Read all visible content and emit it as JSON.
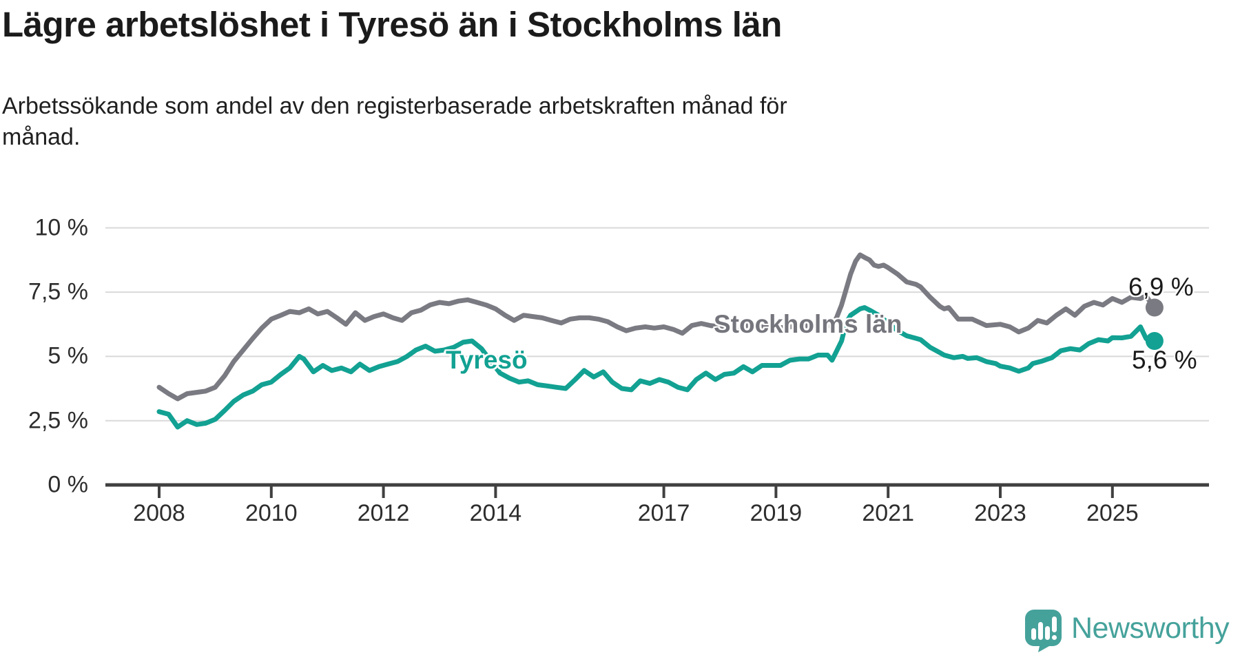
{
  "title": "Lägre arbetslöshet i Tyresö än i Stockholms län",
  "subtitle_lines": [
    "Arbetssökande som andel av den registerbaserade arbetskraften månad för",
    "månad."
  ],
  "branding": {
    "name": "Newsworthy",
    "icon": "speech-bubble-bar-chart-exclamation"
  },
  "colors": {
    "stockholm": "#7A7A82",
    "tyreso": "#12A192",
    "grid": "#D9D9D9",
    "axis": "#404040",
    "tick_text": "#2D2D2D",
    "value_text": "#1A1A1A",
    "logo": "#45A29B"
  },
  "chart_data": {
    "type": "line",
    "title": "Lägre arbetslöshet i Tyresö än i Stockholms län",
    "subtitle": "Arbetssökande som andel av den registerbaserade arbetskraften månad för månad.",
    "xlabel": "",
    "ylabel": "",
    "grid": "horizontal",
    "legend_position": "inline-labels",
    "xlim": [
      2007.05,
      2026.75
    ],
    "ylim": [
      0,
      10
    ],
    "x_ticks": [
      2008,
      2010,
      2012,
      2014,
      2017,
      2019,
      2021,
      2023,
      2025
    ],
    "y_ticks": [
      {
        "value": 10,
        "label": "10 %"
      },
      {
        "value": 7.5,
        "label": "7,5 %"
      },
      {
        "value": 5,
        "label": "5 %"
      },
      {
        "value": 2.5,
        "label": "2,5 %"
      },
      {
        "value": 0,
        "label": "0 %"
      }
    ],
    "series": [
      {
        "name": "Stockholms län",
        "color": "#7A7A82",
        "end_label": "6,9 %",
        "end_value": 6.9,
        "points": [
          [
            2008.0,
            3.8
          ],
          [
            2008.17,
            3.55
          ],
          [
            2008.33,
            3.35
          ],
          [
            2008.5,
            3.55
          ],
          [
            2008.67,
            3.6
          ],
          [
            2008.83,
            3.65
          ],
          [
            2009.0,
            3.8
          ],
          [
            2009.17,
            4.25
          ],
          [
            2009.33,
            4.8
          ],
          [
            2009.5,
            5.25
          ],
          [
            2009.67,
            5.7
          ],
          [
            2009.83,
            6.1
          ],
          [
            2010.0,
            6.45
          ],
          [
            2010.17,
            6.6
          ],
          [
            2010.33,
            6.75
          ],
          [
            2010.5,
            6.7
          ],
          [
            2010.67,
            6.85
          ],
          [
            2010.83,
            6.65
          ],
          [
            2011.0,
            6.75
          ],
          [
            2011.17,
            6.5
          ],
          [
            2011.33,
            6.25
          ],
          [
            2011.5,
            6.7
          ],
          [
            2011.67,
            6.4
          ],
          [
            2011.83,
            6.55
          ],
          [
            2012.0,
            6.65
          ],
          [
            2012.17,
            6.5
          ],
          [
            2012.33,
            6.4
          ],
          [
            2012.5,
            6.7
          ],
          [
            2012.67,
            6.8
          ],
          [
            2012.83,
            7.0
          ],
          [
            2013.0,
            7.1
          ],
          [
            2013.17,
            7.05
          ],
          [
            2013.33,
            7.15
          ],
          [
            2013.5,
            7.2
          ],
          [
            2013.67,
            7.1
          ],
          [
            2013.83,
            7.0
          ],
          [
            2014.0,
            6.85
          ],
          [
            2014.17,
            6.6
          ],
          [
            2014.33,
            6.4
          ],
          [
            2014.5,
            6.6
          ],
          [
            2014.67,
            6.55
          ],
          [
            2014.83,
            6.5
          ],
          [
            2015.0,
            6.4
          ],
          [
            2015.17,
            6.3
          ],
          [
            2015.33,
            6.45
          ],
          [
            2015.5,
            6.5
          ],
          [
            2015.67,
            6.5
          ],
          [
            2015.83,
            6.45
          ],
          [
            2016.0,
            6.35
          ],
          [
            2016.17,
            6.15
          ],
          [
            2016.33,
            6.0
          ],
          [
            2016.5,
            6.1
          ],
          [
            2016.67,
            6.15
          ],
          [
            2016.83,
            6.1
          ],
          [
            2017.0,
            6.15
          ],
          [
            2017.17,
            6.05
          ],
          [
            2017.33,
            5.9
          ],
          [
            2017.5,
            6.2
          ],
          [
            2017.67,
            6.28
          ],
          [
            2017.83,
            6.2
          ],
          [
            2018.0,
            6.15
          ],
          [
            2018.25,
            6.1
          ],
          [
            2018.5,
            6.2
          ],
          [
            2018.75,
            6.15
          ],
          [
            2019.0,
            6.1
          ],
          [
            2019.25,
            6.15
          ],
          [
            2019.5,
            6.2
          ],
          [
            2019.75,
            6.15
          ],
          [
            2020.0,
            6.2
          ],
          [
            2020.08,
            6.5
          ],
          [
            2020.17,
            7.0
          ],
          [
            2020.25,
            7.6
          ],
          [
            2020.33,
            8.2
          ],
          [
            2020.42,
            8.7
          ],
          [
            2020.5,
            8.95
          ],
          [
            2020.58,
            8.85
          ],
          [
            2020.67,
            8.75
          ],
          [
            2020.75,
            8.55
          ],
          [
            2020.83,
            8.5
          ],
          [
            2020.92,
            8.55
          ],
          [
            2021.0,
            8.45
          ],
          [
            2021.17,
            8.2
          ],
          [
            2021.33,
            7.9
          ],
          [
            2021.5,
            7.8
          ],
          [
            2021.58,
            7.7
          ],
          [
            2021.75,
            7.3
          ],
          [
            2021.92,
            6.95
          ],
          [
            2022.0,
            6.85
          ],
          [
            2022.08,
            6.9
          ],
          [
            2022.25,
            6.45
          ],
          [
            2022.5,
            6.45
          ],
          [
            2022.75,
            6.2
          ],
          [
            2023.0,
            6.25
          ],
          [
            2023.17,
            6.15
          ],
          [
            2023.33,
            5.95
          ],
          [
            2023.5,
            6.1
          ],
          [
            2023.67,
            6.4
          ],
          [
            2023.83,
            6.3
          ],
          [
            2024.0,
            6.6
          ],
          [
            2024.17,
            6.85
          ],
          [
            2024.33,
            6.6
          ],
          [
            2024.5,
            6.95
          ],
          [
            2024.67,
            7.1
          ],
          [
            2024.83,
            7.0
          ],
          [
            2025.0,
            7.25
          ],
          [
            2025.17,
            7.1
          ],
          [
            2025.33,
            7.3
          ],
          [
            2025.5,
            7.25
          ],
          [
            2025.6,
            7.35
          ],
          [
            2025.68,
            7.1
          ],
          [
            2025.75,
            6.9
          ]
        ]
      },
      {
        "name": "Tyresö",
        "color": "#12A192",
        "end_label": "5,6 %",
        "end_value": 5.6,
        "points": [
          [
            2008.0,
            2.85
          ],
          [
            2008.17,
            2.75
          ],
          [
            2008.33,
            2.25
          ],
          [
            2008.5,
            2.5
          ],
          [
            2008.67,
            2.35
          ],
          [
            2008.83,
            2.4
          ],
          [
            2009.0,
            2.55
          ],
          [
            2009.17,
            2.9
          ],
          [
            2009.33,
            3.25
          ],
          [
            2009.5,
            3.5
          ],
          [
            2009.67,
            3.65
          ],
          [
            2009.83,
            3.9
          ],
          [
            2010.0,
            4.0
          ],
          [
            2010.17,
            4.3
          ],
          [
            2010.33,
            4.55
          ],
          [
            2010.5,
            5.0
          ],
          [
            2010.58,
            4.9
          ],
          [
            2010.75,
            4.4
          ],
          [
            2010.92,
            4.65
          ],
          [
            2011.08,
            4.45
          ],
          [
            2011.25,
            4.55
          ],
          [
            2011.42,
            4.4
          ],
          [
            2011.58,
            4.7
          ],
          [
            2011.75,
            4.45
          ],
          [
            2011.92,
            4.6
          ],
          [
            2012.08,
            4.7
          ],
          [
            2012.25,
            4.8
          ],
          [
            2012.42,
            5.0
          ],
          [
            2012.58,
            5.25
          ],
          [
            2012.75,
            5.4
          ],
          [
            2012.92,
            5.2
          ],
          [
            2013.08,
            5.25
          ],
          [
            2013.25,
            5.35
          ],
          [
            2013.42,
            5.55
          ],
          [
            2013.58,
            5.6
          ],
          [
            2013.75,
            5.3
          ],
          [
            2013.92,
            4.8
          ],
          [
            2014.08,
            4.35
          ],
          [
            2014.25,
            4.15
          ],
          [
            2014.42,
            4.0
          ],
          [
            2014.58,
            4.05
          ],
          [
            2014.75,
            3.9
          ],
          [
            2014.92,
            3.85
          ],
          [
            2015.08,
            3.8
          ],
          [
            2015.25,
            3.75
          ],
          [
            2015.42,
            4.1
          ],
          [
            2015.58,
            4.45
          ],
          [
            2015.75,
            4.2
          ],
          [
            2015.92,
            4.4
          ],
          [
            2016.08,
            4.0
          ],
          [
            2016.25,
            3.75
          ],
          [
            2016.42,
            3.7
          ],
          [
            2016.58,
            4.05
          ],
          [
            2016.75,
            3.95
          ],
          [
            2016.92,
            4.1
          ],
          [
            2017.08,
            4.0
          ],
          [
            2017.25,
            3.8
          ],
          [
            2017.42,
            3.7
          ],
          [
            2017.58,
            4.1
          ],
          [
            2017.75,
            4.35
          ],
          [
            2017.92,
            4.1
          ],
          [
            2018.08,
            4.3
          ],
          [
            2018.25,
            4.35
          ],
          [
            2018.42,
            4.6
          ],
          [
            2018.58,
            4.4
          ],
          [
            2018.75,
            4.65
          ],
          [
            2018.92,
            4.65
          ],
          [
            2019.08,
            4.65
          ],
          [
            2019.25,
            4.85
          ],
          [
            2019.42,
            4.9
          ],
          [
            2019.58,
            4.9
          ],
          [
            2019.75,
            5.05
          ],
          [
            2019.92,
            5.05
          ],
          [
            2020.0,
            4.85
          ],
          [
            2020.08,
            5.2
          ],
          [
            2020.17,
            5.6
          ],
          [
            2020.25,
            6.3
          ],
          [
            2020.33,
            6.6
          ],
          [
            2020.5,
            6.85
          ],
          [
            2020.58,
            6.9
          ],
          [
            2020.67,
            6.8
          ],
          [
            2020.83,
            6.6
          ],
          [
            2021.0,
            6.3
          ],
          [
            2021.17,
            6.0
          ],
          [
            2021.33,
            5.8
          ],
          [
            2021.5,
            5.7
          ],
          [
            2021.58,
            5.65
          ],
          [
            2021.75,
            5.35
          ],
          [
            2021.92,
            5.15
          ],
          [
            2022.0,
            5.05
          ],
          [
            2022.17,
            4.95
          ],
          [
            2022.33,
            5.0
          ],
          [
            2022.42,
            4.92
          ],
          [
            2022.58,
            4.95
          ],
          [
            2022.75,
            4.8
          ],
          [
            2022.92,
            4.72
          ],
          [
            2023.0,
            4.62
          ],
          [
            2023.17,
            4.55
          ],
          [
            2023.33,
            4.42
          ],
          [
            2023.5,
            4.55
          ],
          [
            2023.58,
            4.72
          ],
          [
            2023.75,
            4.82
          ],
          [
            2023.92,
            4.95
          ],
          [
            2024.08,
            5.22
          ],
          [
            2024.25,
            5.3
          ],
          [
            2024.42,
            5.25
          ],
          [
            2024.58,
            5.5
          ],
          [
            2024.75,
            5.65
          ],
          [
            2024.92,
            5.6
          ],
          [
            2025.0,
            5.73
          ],
          [
            2025.17,
            5.72
          ],
          [
            2025.33,
            5.78
          ],
          [
            2025.5,
            6.15
          ],
          [
            2025.6,
            5.7
          ],
          [
            2025.68,
            5.55
          ],
          [
            2025.75,
            5.65
          ]
        ]
      }
    ]
  }
}
